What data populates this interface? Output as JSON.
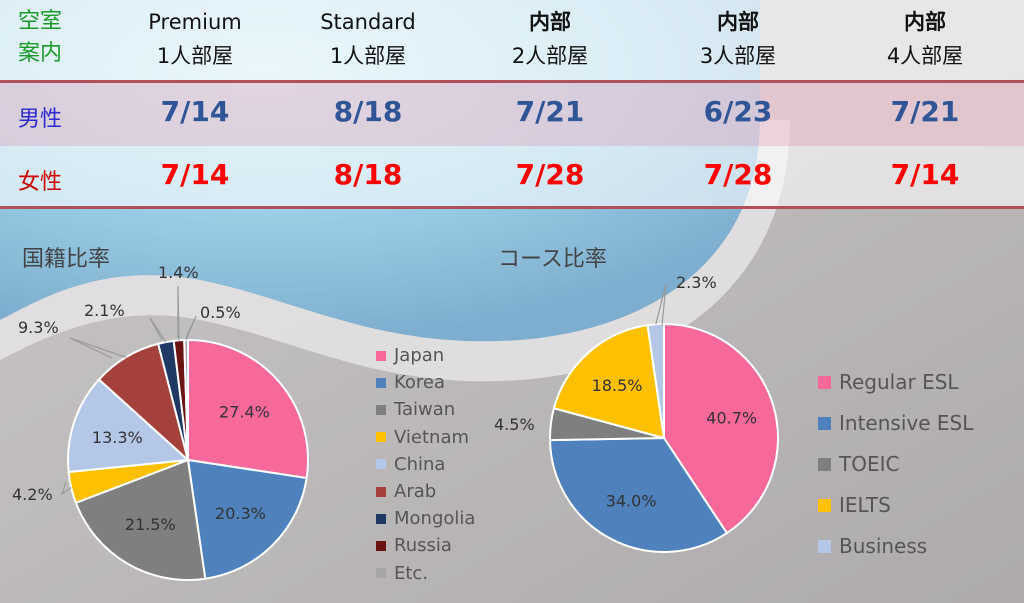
{
  "header": {
    "corner_label_1": "空室",
    "corner_label_2": "案内",
    "columns": [
      {
        "line1": "Premium",
        "line2": "1人部屋"
      },
      {
        "line1": "Standard",
        "line2": "1人部屋"
      },
      {
        "line1": "内部",
        "line2": "2人部屋"
      },
      {
        "line1": "内部",
        "line2": "3人部屋"
      },
      {
        "line1": "内部",
        "line2": "4人部屋"
      }
    ]
  },
  "rows": {
    "male": {
      "label": "男性",
      "values": [
        "7/14",
        "8/18",
        "7/21",
        "6/23",
        "7/21"
      ]
    },
    "female": {
      "label": "女性",
      "values": [
        "7/14",
        "8/18",
        "7/28",
        "7/28",
        "7/14"
      ]
    }
  },
  "colors": {
    "corner_label": "#1a9a2a",
    "male": "#2f5597",
    "male_label": "#2a2ad0",
    "female": "#ff0000",
    "female_label": "#cc0000"
  },
  "chart_data": [
    {
      "type": "pie",
      "title": "国籍比率",
      "categories": [
        "Japan",
        "Korea",
        "Taiwan",
        "Vietnam",
        "China",
        "Arab",
        "Mongolia",
        "Russia",
        "Etc."
      ],
      "values": [
        27.4,
        20.3,
        21.5,
        4.2,
        13.3,
        9.3,
        2.1,
        1.4,
        0.5
      ],
      "labels": [
        "27.4%",
        "20.3%",
        "21.5%",
        "4.2%",
        "13.3%",
        "9.3%",
        "2.1%",
        "1.4%",
        "0.5%"
      ],
      "colors": [
        "#f7699a",
        "#4f81bd",
        "#7f7f7f",
        "#ffc000",
        "#b4c7e7",
        "#a5413d",
        "#1f3864",
        "#6a1414",
        "#a5a5a5"
      ],
      "legend_position": "right"
    },
    {
      "type": "pie",
      "title": "コース比率",
      "categories": [
        "Regular ESL",
        "Intensive ESL",
        "TOEIC",
        "IELTS",
        "Business"
      ],
      "values": [
        40.7,
        34.0,
        4.5,
        18.5,
        2.3
      ],
      "labels": [
        "40.7%",
        "34.0%",
        "4.5%",
        "18.5%",
        "2.3%"
      ],
      "colors": [
        "#f7699a",
        "#4f81bd",
        "#7f7f7f",
        "#ffc000",
        "#b4c7e7"
      ],
      "legend_position": "right"
    }
  ]
}
